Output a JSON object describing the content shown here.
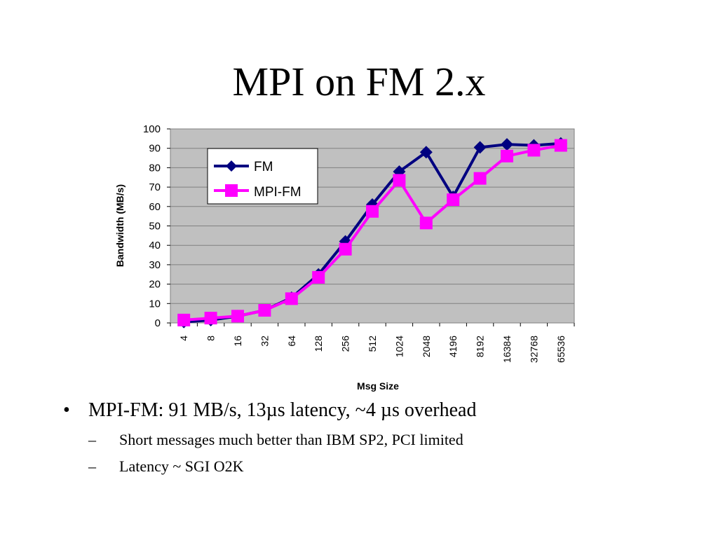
{
  "slide": {
    "title": "MPI on FM 2.x"
  },
  "chart_data": {
    "type": "line",
    "title": "",
    "xlabel": "Msg Size",
    "ylabel": "Bandwidth (MB/s)",
    "categories": [
      "4",
      "8",
      "16",
      "32",
      "64",
      "128",
      "256",
      "512",
      "1024",
      "2048",
      "4196",
      "8192",
      "16384",
      "32768",
      "65536"
    ],
    "ylim": [
      0,
      100
    ],
    "yticks": [
      "0",
      "10",
      "20",
      "30",
      "40",
      "50",
      "60",
      "70",
      "80",
      "90",
      "100"
    ],
    "grid": true,
    "legend_position": "top-left inside plot",
    "background": "#C0C0C0",
    "series": [
      {
        "name": "FM",
        "color": "#000080",
        "marker": "diamond",
        "values": [
          0.5,
          1.5,
          3.5,
          6.5,
          13,
          25,
          42,
          61,
          78,
          88,
          65,
          90.5,
          92,
          91.5,
          92.5
        ]
      },
      {
        "name": "MPI-FM",
        "color": "#FF00FF",
        "marker": "square",
        "values": [
          1.5,
          2.5,
          3.5,
          6.5,
          12.5,
          23.5,
          38,
          57.5,
          73.5,
          51.5,
          63.5,
          74.5,
          86,
          89,
          91.5
        ]
      }
    ]
  },
  "bullets": {
    "main_marker": "•",
    "main": "MPI-FM: 91 MB/s, 13µs latency, ~4 µs overhead",
    "sub_marker": "–",
    "subs": [
      "Short messages much better than IBM SP2, PCI limited",
      "Latency ~ SGI O2K"
    ]
  }
}
